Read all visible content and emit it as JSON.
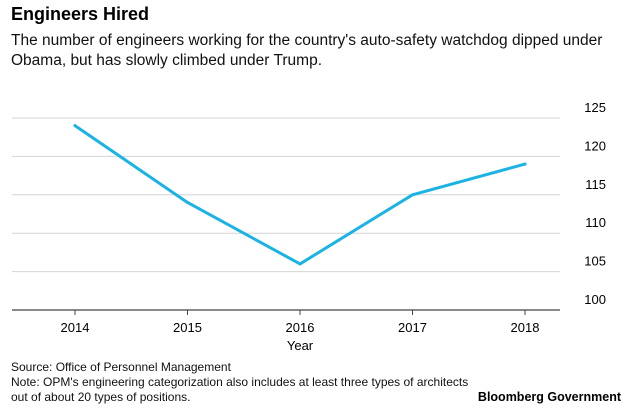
{
  "header": {
    "title": "Engineers Hired",
    "subtitle": "The number of engineers working for the country's auto-safety watchdog dipped under Obama, but has slowly climbed under Trump."
  },
  "chart_data": {
    "type": "line",
    "x": [
      2014,
      2015,
      2016,
      2017,
      2018
    ],
    "series": [
      {
        "values": [
          124,
          114,
          106,
          115,
          119
        ],
        "color": "#1bb3e3"
      }
    ],
    "xlabel": "Year",
    "ylabel": "",
    "ylim": [
      100,
      125
    ],
    "yticks": [
      100,
      105,
      110,
      115,
      120,
      125
    ],
    "xticks": [
      2014,
      2015,
      2016,
      2017,
      2018
    ],
    "grid": true,
    "y_axis_side": "right"
  },
  "footer": {
    "source": "Source: Office of Personnel Management",
    "note": "Note: OPM's engineering categorization also includes at least three types of architects out of about 20 types of positions.",
    "brand": "Bloomberg Government"
  }
}
